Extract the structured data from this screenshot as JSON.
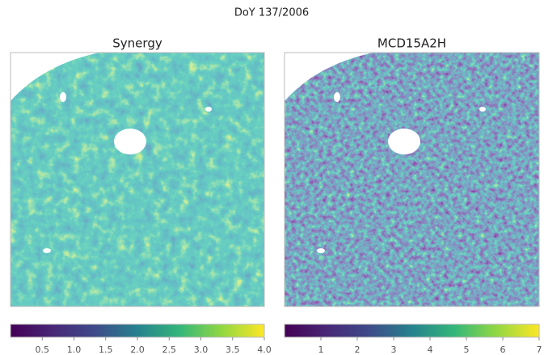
{
  "title": "DoY 137/2006",
  "chart_data": [
    {
      "type": "image",
      "title": "Synergy",
      "colormap": "viridis",
      "clim": [
        0,
        4
      ],
      "cticks": [
        0.5,
        {
          "value": 1,
          "label": "1.0"
        },
        1.5,
        {
          "value": 2,
          "label": "2.0"
        },
        2.5,
        {
          "value": 3,
          "label": "3.0"
        },
        3.5,
        {
          "value": 4,
          "label": "4.0"
        }
      ]
    },
    {
      "type": "image",
      "title": "MCD15A2H",
      "colormap": "viridis",
      "clim": [
        0,
        7
      ],
      "cticks": [
        1,
        2,
        3,
        4,
        5,
        6,
        7
      ]
    }
  ]
}
